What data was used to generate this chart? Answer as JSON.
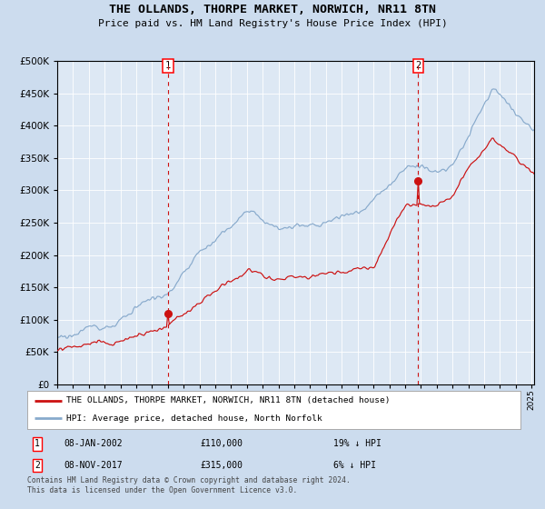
{
  "title": "THE OLLANDS, THORPE MARKET, NORWICH, NR11 8TN",
  "subtitle": "Price paid vs. HM Land Registry's House Price Index (HPI)",
  "legend_line1": "THE OLLANDS, THORPE MARKET, NORWICH, NR11 8TN (detached house)",
  "legend_line2": "HPI: Average price, detached house, North Norfolk",
  "ann1_label": "1",
  "ann1_date": "08-JAN-2002",
  "ann1_price": "£110,000",
  "ann1_pct": "19% ↓ HPI",
  "ann2_label": "2",
  "ann2_date": "08-NOV-2017",
  "ann2_price": "£315,000",
  "ann2_pct": "6% ↓ HPI",
  "footer1": "Contains HM Land Registry data © Crown copyright and database right 2024.",
  "footer2": "This data is licensed under the Open Government Licence v3.0.",
  "bg_color": "#ccdcee",
  "plot_bg": "#dde8f4",
  "red_color": "#cc1111",
  "blue_color": "#88aacc",
  "grid_color": "#ffffff",
  "purchase1_year": 2002,
  "purchase1_month": 1,
  "purchase1_value": 110000,
  "purchase2_year": 2017,
  "purchase2_month": 11,
  "purchase2_value": 315000
}
